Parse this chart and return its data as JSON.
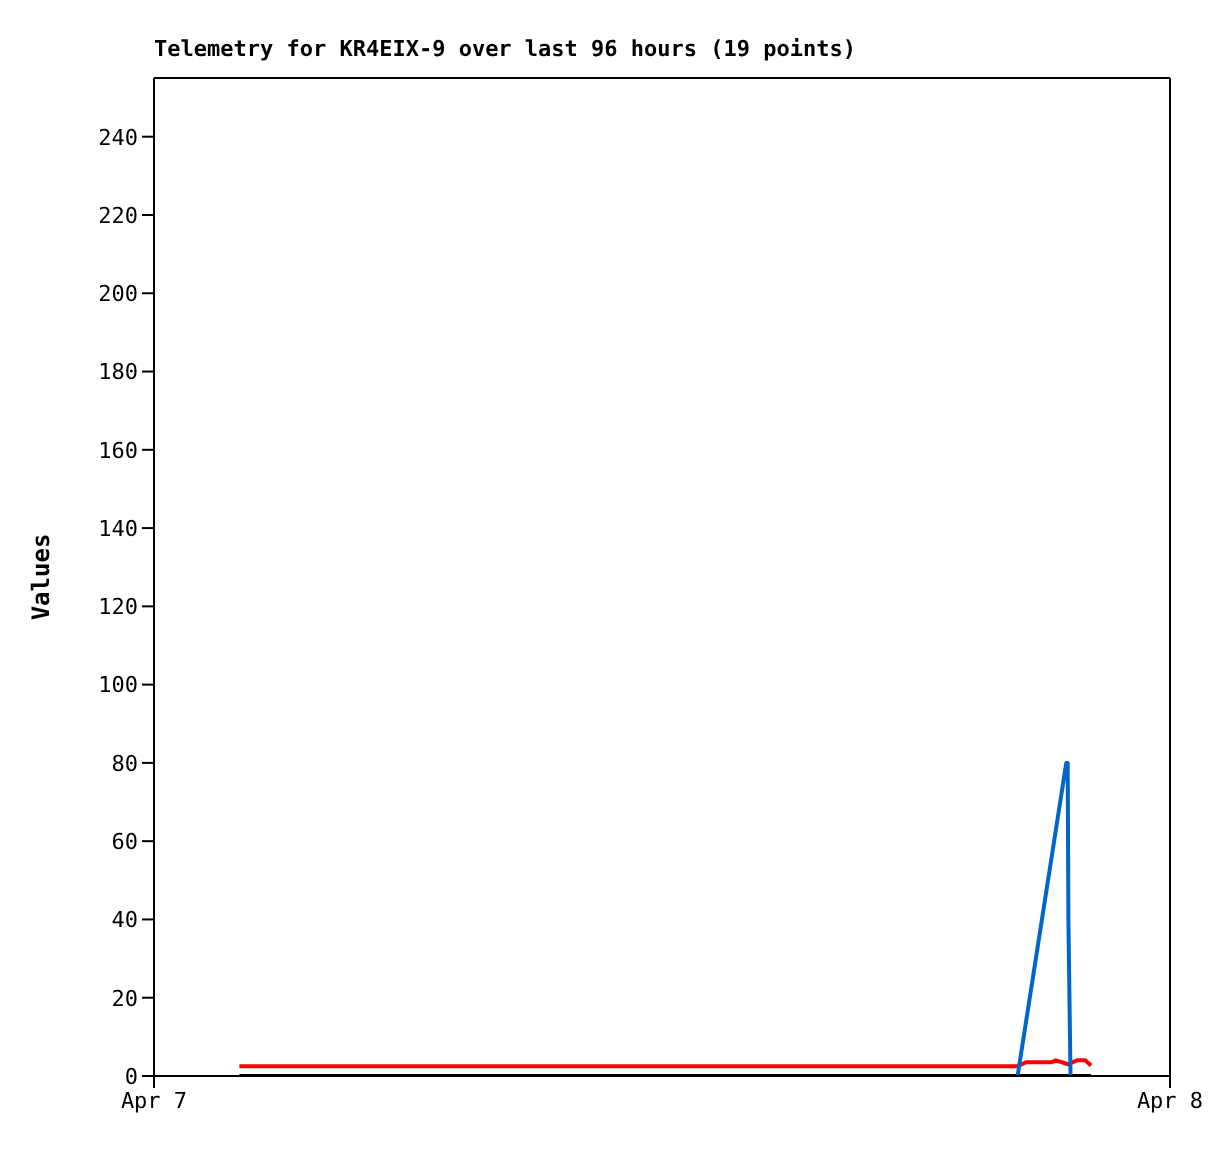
{
  "chart_data": {
    "type": "line",
    "title": "Telemetry for KR4EIX-9 over last 96 hours (19 points)",
    "ylabel": "Values",
    "xlim": [
      "--04-07T00:00",
      "--04-08T00:00"
    ],
    "xticks": [
      {
        "value": "--04-07",
        "label": "Apr 7"
      },
      {
        "value": "--04-08",
        "label": "Apr 8"
      }
    ],
    "ylim": [
      0,
      255
    ],
    "yticks": [
      0,
      20,
      40,
      60,
      80,
      100,
      120,
      140,
      160,
      180,
      200,
      220,
      240
    ],
    "grid": false,
    "legend": false,
    "marker": "none",
    "line_style": "solid",
    "series": [
      {
        "color": "#000000",
        "x": [
          "--04-07T02:01",
          "--04-07T22:08"
        ],
        "values": [
          0,
          0
        ]
      },
      {
        "color": "#ff0000",
        "x": [
          "--04-07T02:01",
          "--04-07T20:24",
          "--04-07T20:36",
          "--04-07T21:12",
          "--04-07T21:18",
          "--04-07T21:36",
          "--04-07T21:48",
          "--04-07T22:00",
          "--04-07T22:08"
        ],
        "values": [
          2.5,
          2.5,
          3.5,
          3.5,
          4,
          3,
          4,
          4,
          2.7
        ]
      },
      {
        "color": "#0066cc",
        "x": [
          "--04-07T20:24",
          "--04-07T21:33",
          "--04-07T21:35",
          "--04-07T21:36",
          "--04-07T21:39"
        ],
        "values": [
          0,
          80,
          80,
          40,
          0
        ]
      }
    ]
  }
}
